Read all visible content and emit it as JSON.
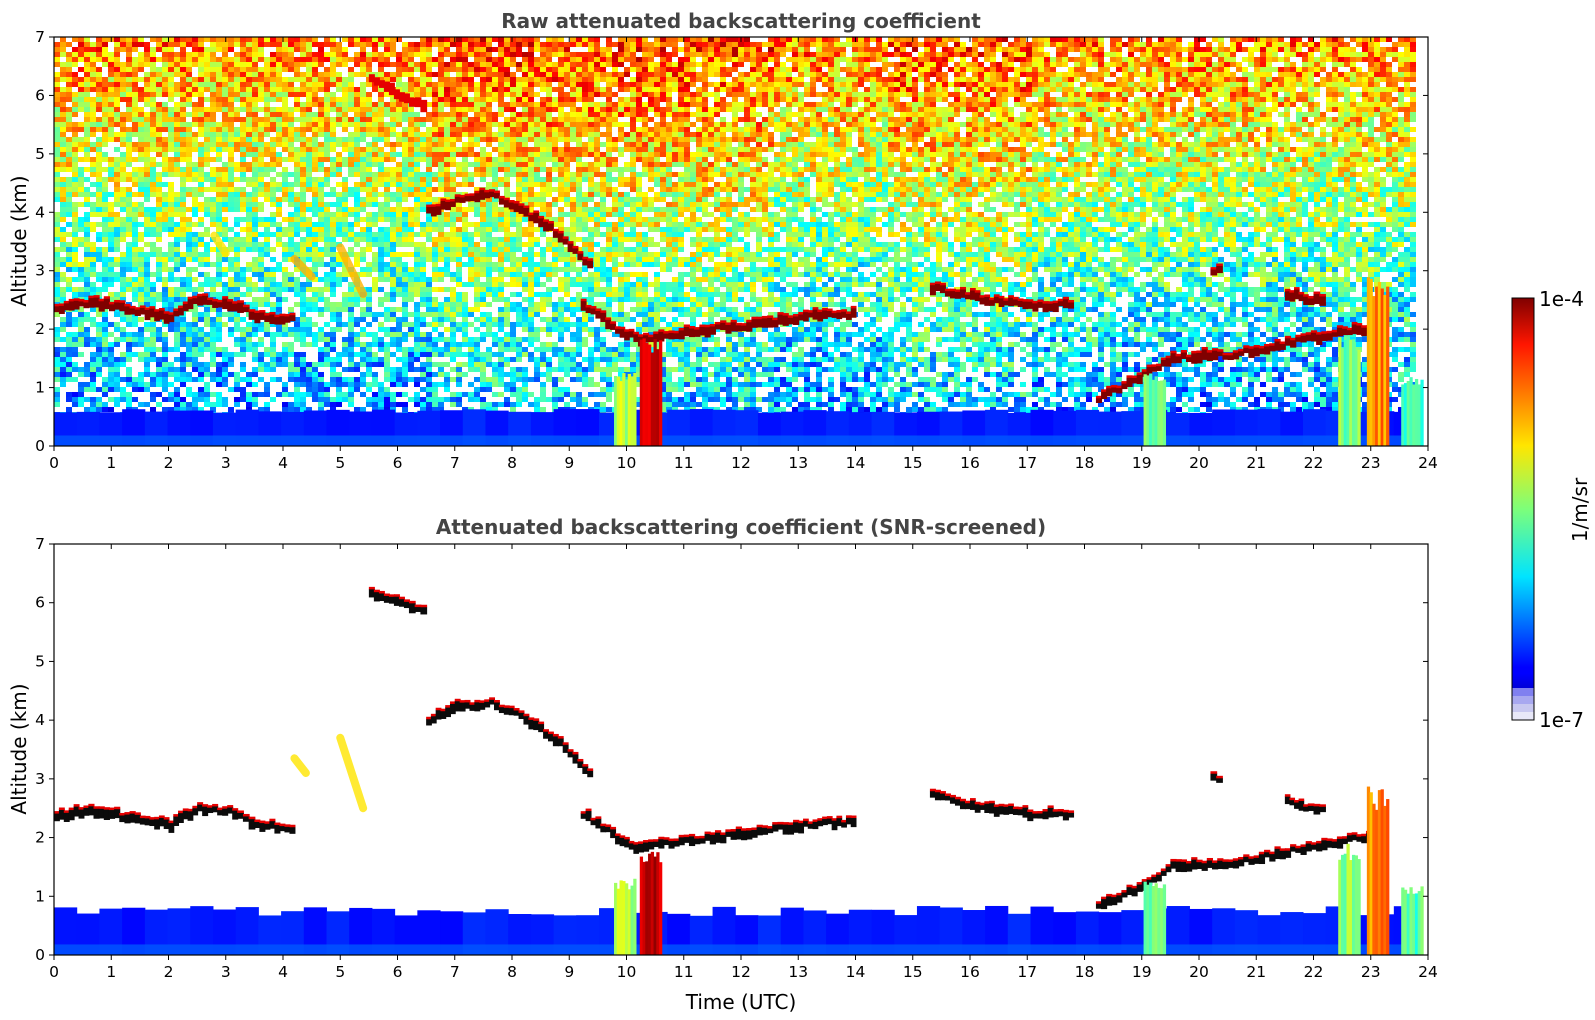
{
  "chart_data": [
    {
      "type": "heatmap",
      "title": "Raw attenuated backscattering coefficient",
      "xlabel": "",
      "ylabel": "Altitude (km)",
      "xlim": [
        0,
        24
      ],
      "ylim": [
        0,
        7
      ],
      "xticks": [
        "0",
        "1",
        "2",
        "3",
        "4",
        "5",
        "6",
        "7",
        "8",
        "9",
        "10",
        "11",
        "12",
        "13",
        "14",
        "15",
        "16",
        "17",
        "18",
        "19",
        "20",
        "21",
        "22",
        "23",
        "24"
      ],
      "yticks": [
        "0",
        "1",
        "2",
        "3",
        "4",
        "5",
        "6",
        "7"
      ],
      "screened": false,
      "features": [
        {
          "kind": "noise_background",
          "description_level": "high aloft, low near surface"
        },
        {
          "kind": "surface_layer",
          "x": [
            0,
            23.8
          ],
          "top": 0.6,
          "level": 0.15
        },
        {
          "kind": "cloud_layer",
          "points": [
            [
              0,
              2.35
            ],
            [
              0.6,
              2.45
            ],
            [
              1.5,
              2.3
            ],
            [
              2.0,
              2.2
            ],
            [
              2.5,
              2.5
            ],
            [
              3.2,
              2.4
            ],
            [
              3.5,
              2.2
            ],
            [
              4.2,
              2.15
            ]
          ],
          "level": 1.0
        },
        {
          "kind": "cloud_layer",
          "points": [
            [
              6.5,
              4.0
            ],
            [
              7.0,
              4.2
            ],
            [
              7.6,
              4.3
            ],
            [
              8.2,
              4.0
            ],
            [
              8.8,
              3.6
            ],
            [
              9.4,
              3.0
            ]
          ],
          "level": 1.0
        },
        {
          "kind": "cloud_layer",
          "points": [
            [
              5.5,
              6.25
            ],
            [
              6.2,
              5.9
            ],
            [
              6.5,
              5.8
            ]
          ],
          "level": 0.9
        },
        {
          "kind": "cloud_layer",
          "points": [
            [
              9.2,
              2.4
            ],
            [
              9.8,
              2.0
            ],
            [
              10.2,
              1.8
            ],
            [
              11.0,
              1.95
            ],
            [
              12.0,
              2.05
            ],
            [
              13.0,
              2.2
            ],
            [
              13.5,
              2.25
            ],
            [
              14.0,
              2.25
            ]
          ],
          "level": 1.0
        },
        {
          "kind": "cloud_layer",
          "points": [
            [
              15.3,
              2.7
            ],
            [
              16.0,
              2.55
            ],
            [
              16.5,
              2.45
            ],
            [
              17.0,
              2.4
            ],
            [
              17.8,
              2.4
            ]
          ],
          "level": 1.0
        },
        {
          "kind": "cloud_layer",
          "points": [
            [
              18.2,
              0.8
            ],
            [
              19.0,
              1.2
            ],
            [
              19.5,
              1.5
            ],
            [
              20.5,
              1.55
            ],
            [
              21.5,
              1.75
            ],
            [
              22.5,
              1.95
            ],
            [
              23.0,
              2.0
            ]
          ],
          "level": 1.0
        },
        {
          "kind": "cloud_layer",
          "points": [
            [
              20.2,
              3.0
            ],
            [
              20.4,
              3.0
            ]
          ],
          "level": 1.0
        },
        {
          "kind": "cloud_layer",
          "points": [
            [
              21.5,
              2.6
            ],
            [
              21.9,
              2.5
            ],
            [
              22.2,
              2.5
            ]
          ],
          "level": 1.0
        },
        {
          "kind": "plume",
          "x": 10.4,
          "bottom": 0.0,
          "top": 1.85,
          "level": 0.95
        },
        {
          "kind": "plume",
          "x": 9.95,
          "bottom": 0.0,
          "top": 1.3,
          "level": 0.55
        },
        {
          "kind": "plume",
          "x": 19.2,
          "bottom": 0.0,
          "top": 1.3,
          "level": 0.5
        },
        {
          "kind": "plume",
          "x": 23.1,
          "bottom": 0.0,
          "top": 2.9,
          "level": 0.75
        },
        {
          "kind": "plume",
          "x": 22.6,
          "bottom": 0.0,
          "top": 1.9,
          "level": 0.5
        },
        {
          "kind": "plume",
          "x": 23.7,
          "bottom": 0.0,
          "top": 1.2,
          "level": 0.45
        },
        {
          "kind": "aerosol_streak",
          "points": [
            [
              4.2,
              3.2
            ],
            [
              4.5,
              2.9
            ]
          ],
          "level": 0.7
        },
        {
          "kind": "aerosol_streak",
          "points": [
            [
              5.0,
              3.4
            ],
            [
              5.4,
              2.6
            ]
          ],
          "level": 0.7
        },
        {
          "kind": "aerosol_streak",
          "points": [
            [
              2.8,
              3.6
            ],
            [
              3.0,
              3.3
            ]
          ],
          "level": 0.65
        }
      ]
    },
    {
      "type": "heatmap",
      "title": "Attenuated backscattering coefficient (SNR-screened)",
      "xlabel": "Time (UTC)",
      "ylabel": "Altitude (km)",
      "xlim": [
        0,
        24
      ],
      "ylim": [
        0,
        7
      ],
      "xticks": [
        "0",
        "1",
        "2",
        "3",
        "4",
        "5",
        "6",
        "7",
        "8",
        "9",
        "10",
        "11",
        "12",
        "13",
        "14",
        "15",
        "16",
        "17",
        "18",
        "19",
        "20",
        "21",
        "22",
        "23",
        "24"
      ],
      "yticks": [
        "0",
        "1",
        "2",
        "3",
        "4",
        "5",
        "6",
        "7"
      ],
      "screened": true,
      "features": [
        {
          "kind": "surface_layer",
          "x": [
            0,
            23.8
          ],
          "top": 0.75,
          "level": 0.15
        },
        {
          "kind": "cloud_layer",
          "points": [
            [
              0,
              2.35
            ],
            [
              0.6,
              2.45
            ],
            [
              1.5,
              2.3
            ],
            [
              2.0,
              2.2
            ],
            [
              2.5,
              2.5
            ],
            [
              3.2,
              2.4
            ],
            [
              3.5,
              2.2
            ],
            [
              4.2,
              2.15
            ]
          ],
          "level": 1.0
        },
        {
          "kind": "cloud_layer",
          "points": [
            [
              6.5,
              4.0
            ],
            [
              7.0,
              4.2
            ],
            [
              7.6,
              4.3
            ],
            [
              8.2,
              4.0
            ],
            [
              8.8,
              3.6
            ],
            [
              9.4,
              3.0
            ]
          ],
          "level": 1.0
        },
        {
          "kind": "cloud_layer",
          "points": [
            [
              5.5,
              6.15
            ],
            [
              6.2,
              5.9
            ],
            [
              6.5,
              5.8
            ]
          ],
          "level": 0.9
        },
        {
          "kind": "cloud_layer",
          "points": [
            [
              9.2,
              2.4
            ],
            [
              9.8,
              2.0
            ],
            [
              10.2,
              1.8
            ],
            [
              11.0,
              1.95
            ],
            [
              12.0,
              2.05
            ],
            [
              13.0,
              2.2
            ],
            [
              13.5,
              2.25
            ],
            [
              14.0,
              2.25
            ]
          ],
          "level": 1.0
        },
        {
          "kind": "cloud_layer",
          "points": [
            [
              15.3,
              2.7
            ],
            [
              16.0,
              2.55
            ],
            [
              16.5,
              2.45
            ],
            [
              17.0,
              2.4
            ],
            [
              17.8,
              2.4
            ]
          ],
          "level": 1.0
        },
        {
          "kind": "cloud_layer",
          "points": [
            [
              18.2,
              0.8
            ],
            [
              19.0,
              1.2
            ],
            [
              19.5,
              1.5
            ],
            [
              20.5,
              1.55
            ],
            [
              21.5,
              1.75
            ],
            [
              22.5,
              1.95
            ],
            [
              23.0,
              2.0
            ]
          ],
          "level": 1.0
        },
        {
          "kind": "cloud_layer",
          "points": [
            [
              20.2,
              3.0
            ],
            [
              20.4,
              3.0
            ]
          ],
          "level": 1.0
        },
        {
          "kind": "cloud_layer",
          "points": [
            [
              21.5,
              2.6
            ],
            [
              21.9,
              2.5
            ],
            [
              22.2,
              2.5
            ]
          ],
          "level": 1.0
        },
        {
          "kind": "plume",
          "x": 10.4,
          "bottom": 0.0,
          "top": 1.85,
          "level": 0.95
        },
        {
          "kind": "plume",
          "x": 9.95,
          "bottom": 0.0,
          "top": 1.3,
          "level": 0.55
        },
        {
          "kind": "plume",
          "x": 19.2,
          "bottom": 0.0,
          "top": 1.3,
          "level": 0.5
        },
        {
          "kind": "plume",
          "x": 23.1,
          "bottom": 0.0,
          "top": 2.9,
          "level": 0.75
        },
        {
          "kind": "plume",
          "x": 22.6,
          "bottom": 0.0,
          "top": 1.9,
          "level": 0.5
        },
        {
          "kind": "plume",
          "x": 23.7,
          "bottom": 0.0,
          "top": 1.2,
          "level": 0.45
        },
        {
          "kind": "aerosol_streak",
          "points": [
            [
              4.2,
              3.35
            ],
            [
              4.4,
              3.1
            ]
          ],
          "level": 0.65
        },
        {
          "kind": "aerosol_streak",
          "points": [
            [
              5.0,
              3.7
            ],
            [
              5.4,
              2.5
            ]
          ],
          "level": 0.65
        }
      ]
    }
  ],
  "colorbar": {
    "label": "1/m/sr",
    "max_label": "1e-4",
    "min_label": "1e-7",
    "scale": "log",
    "range": [
      1e-07,
      0.0001
    ],
    "colormap": "jet",
    "low_colors": [
      "#e8e8f8",
      "#c8c8f0",
      "#a8a8f0",
      "#8080f0"
    ]
  }
}
